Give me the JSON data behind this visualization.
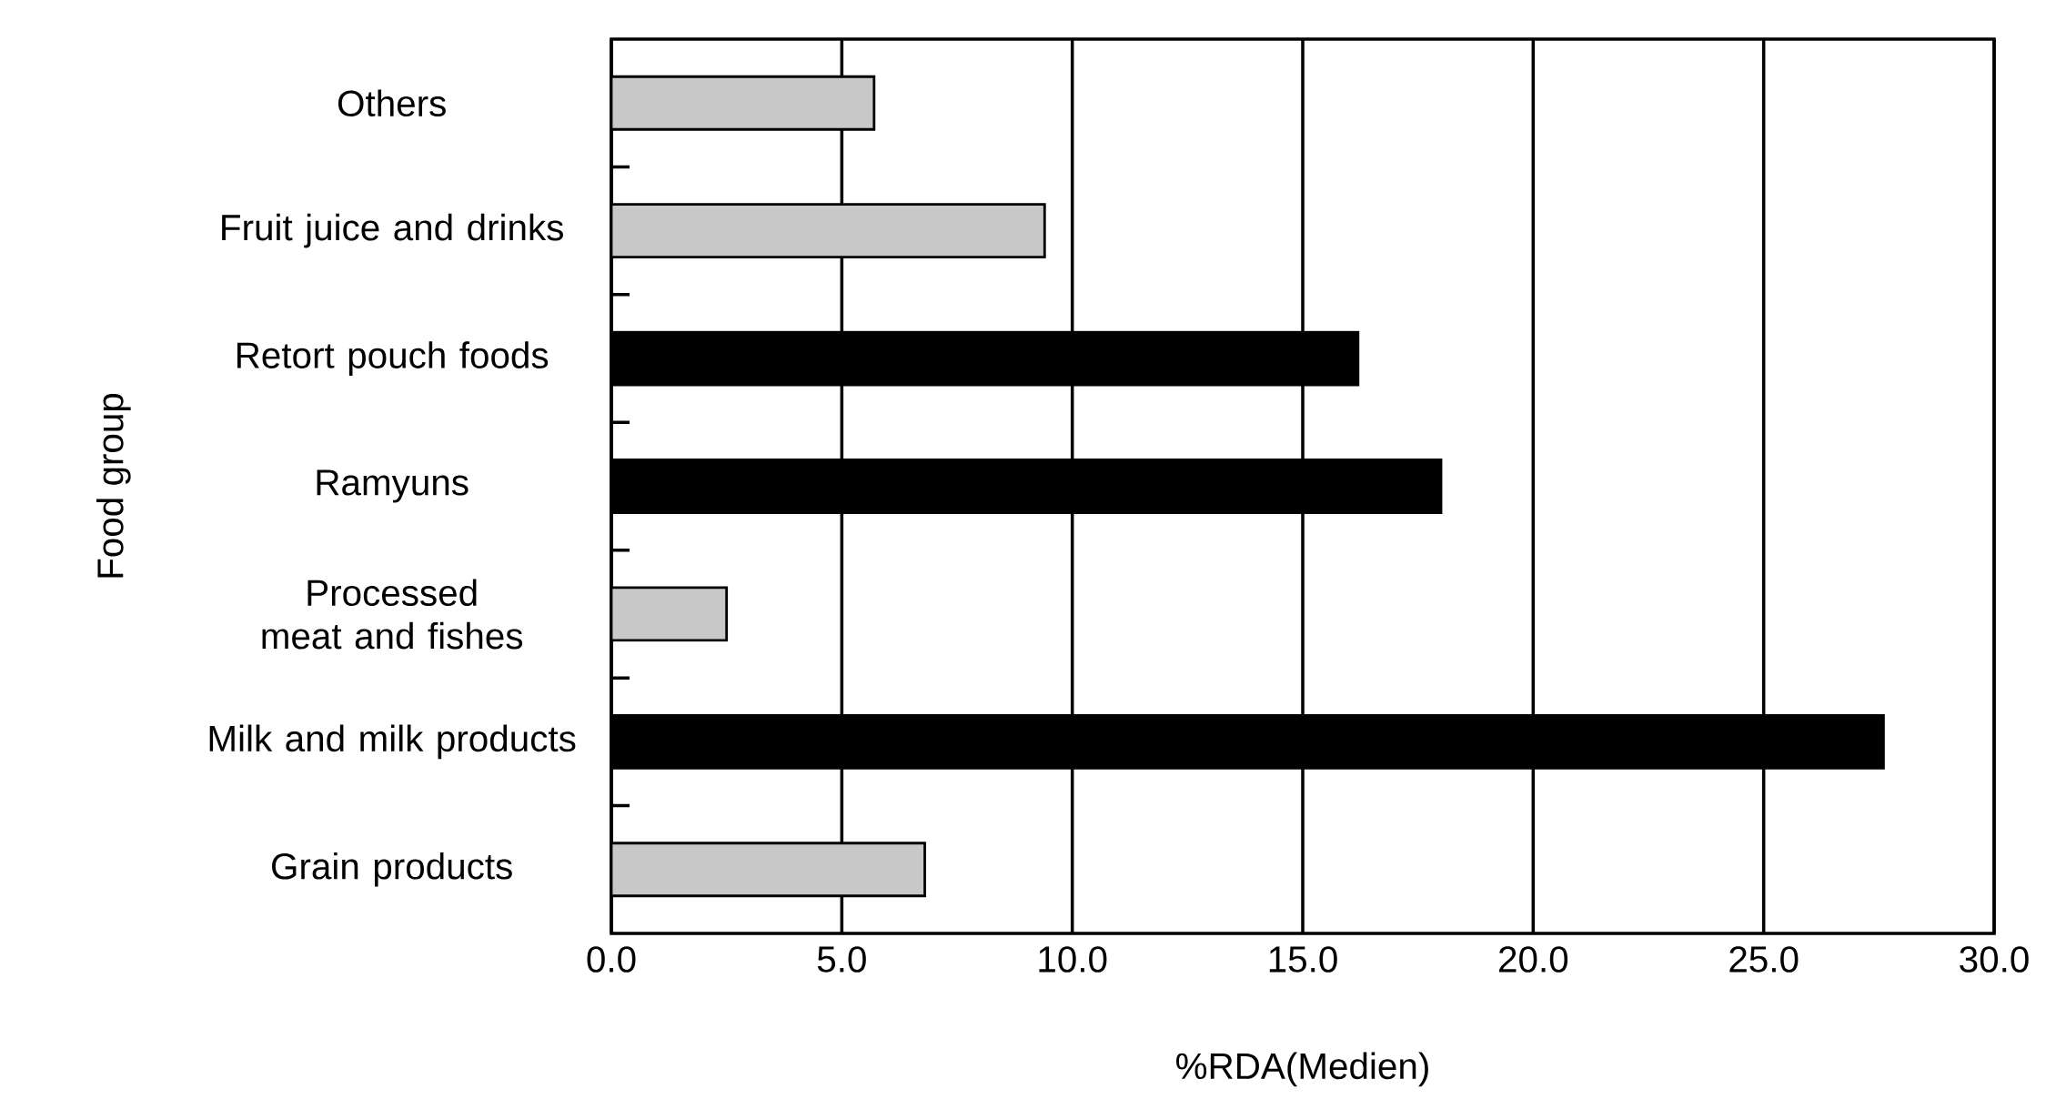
{
  "chart_data": {
    "type": "bar",
    "orientation": "horizontal",
    "xlabel": "%RDA(Medien)",
    "ylabel": "Food group",
    "categories": [
      "Others",
      "Fruit juice and drinks",
      "Retort pouch foods",
      "Ramyuns",
      "Processed meat and fishes",
      "Milk and milk products",
      "Grain products"
    ],
    "values": [
      5.7,
      9.4,
      16.2,
      18.0,
      2.5,
      27.6,
      6.8
    ],
    "colors": [
      "#c8c8c8",
      "#c8c8c8",
      "#000000",
      "#000000",
      "#c8c8c8",
      "#000000",
      "#c8c8c8"
    ],
    "xlim": [
      0,
      30
    ],
    "xticks": [
      {
        "value": 0,
        "label": "0.0"
      },
      {
        "value": 5,
        "label": "5.0"
      },
      {
        "value": 10,
        "label": "10.0"
      },
      {
        "value": 15,
        "label": "15.0"
      },
      {
        "value": 20,
        "label": "20.0"
      },
      {
        "value": 25,
        "label": "25.0"
      },
      {
        "value": 30,
        "label": "30.0"
      }
    ],
    "grid": "x"
  }
}
